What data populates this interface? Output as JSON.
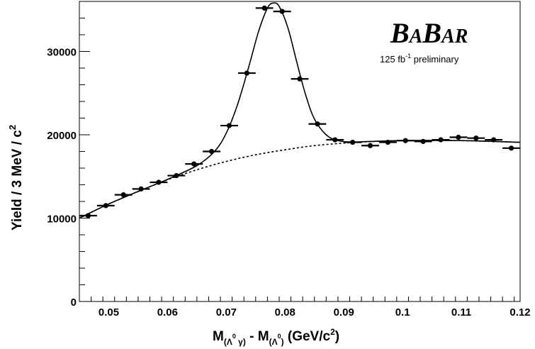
{
  "chart_data": {
    "type": "scatter",
    "x_tick_labels": [
      "0.05",
      "0.06",
      "0.07",
      "0.08",
      "0.09",
      "0.1",
      "0.11",
      "0.12"
    ],
    "y_tick_labels": [
      "0",
      "10000",
      "20000",
      "30000"
    ],
    "x_ticks": [
      0.05,
      0.06,
      0.07,
      0.08,
      0.09,
      0.1,
      0.11,
      0.12
    ],
    "y_ticks": [
      0,
      10000,
      20000,
      30000
    ],
    "xlim": [
      0.045,
      0.12
    ],
    "ylim": [
      0,
      36000
    ],
    "xlabel": {
      "main": "M",
      "sub1": "(Λ",
      "sup1": "0",
      "sub1b": " γ)",
      "mid": " - M",
      "sub2": "(Λ",
      "sup2": "0",
      "sub2b": ")",
      "tail": " (GeV/c",
      "sup3": "2",
      "end": ")"
    },
    "ylabel": {
      "main": "Yield / 3 MeV / c",
      "sup": "2"
    },
    "annotation": {
      "brand_b1": "B",
      "brand_a1": "A",
      "brand_b2": "B",
      "brand_ar": "AR",
      "lumi_pre": "125 fb",
      "lumi_sup": "-1",
      "lumi_post": " preliminary"
    },
    "points": [
      {
        "x": 0.0465,
        "y": 10300
      },
      {
        "x": 0.0495,
        "y": 11500
      },
      {
        "x": 0.0525,
        "y": 12800
      },
      {
        "x": 0.0555,
        "y": 13500
      },
      {
        "x": 0.0585,
        "y": 14300
      },
      {
        "x": 0.0615,
        "y": 15100
      },
      {
        "x": 0.0645,
        "y": 16500
      },
      {
        "x": 0.0675,
        "y": 18000
      },
      {
        "x": 0.0705,
        "y": 21100
      },
      {
        "x": 0.0735,
        "y": 27400
      },
      {
        "x": 0.0765,
        "y": 35200
      },
      {
        "x": 0.0795,
        "y": 34800
      },
      {
        "x": 0.0825,
        "y": 26700
      },
      {
        "x": 0.0855,
        "y": 21300
      },
      {
        "x": 0.0885,
        "y": 19400
      },
      {
        "x": 0.0915,
        "y": 19100
      },
      {
        "x": 0.0945,
        "y": 18700
      },
      {
        "x": 0.0975,
        "y": 19100
      },
      {
        "x": 0.1005,
        "y": 19300
      },
      {
        "x": 0.1035,
        "y": 19200
      },
      {
        "x": 0.1065,
        "y": 19400
      },
      {
        "x": 0.1095,
        "y": 19700
      },
      {
        "x": 0.1125,
        "y": 19600
      },
      {
        "x": 0.1155,
        "y": 19400
      },
      {
        "x": 0.1185,
        "y": 18400
      }
    ],
    "point_half_width": 0.0015,
    "fit_background": [
      {
        "x": 0.045,
        "y": 10000
      },
      {
        "x": 0.05,
        "y": 11700
      },
      {
        "x": 0.055,
        "y": 13200
      },
      {
        "x": 0.06,
        "y": 14600
      },
      {
        "x": 0.065,
        "y": 15800
      },
      {
        "x": 0.07,
        "y": 16800
      },
      {
        "x": 0.075,
        "y": 17600
      },
      {
        "x": 0.08,
        "y": 18200
      },
      {
        "x": 0.085,
        "y": 18700
      },
      {
        "x": 0.09,
        "y": 19000
      },
      {
        "x": 0.095,
        "y": 19200
      },
      {
        "x": 0.1,
        "y": 19300
      },
      {
        "x": 0.105,
        "y": 19300
      },
      {
        "x": 0.11,
        "y": 19300
      },
      {
        "x": 0.115,
        "y": 19200
      },
      {
        "x": 0.12,
        "y": 19100
      }
    ],
    "fit_total": [
      {
        "x": 0.045,
        "y": 10000
      },
      {
        "x": 0.05,
        "y": 11700
      },
      {
        "x": 0.055,
        "y": 13200
      },
      {
        "x": 0.06,
        "y": 14650
      },
      {
        "x": 0.065,
        "y": 16300
      },
      {
        "x": 0.068,
        "y": 18000
      },
      {
        "x": 0.07,
        "y": 20200
      },
      {
        "x": 0.072,
        "y": 23800
      },
      {
        "x": 0.074,
        "y": 28600
      },
      {
        "x": 0.0755,
        "y": 32400
      },
      {
        "x": 0.077,
        "y": 35200
      },
      {
        "x": 0.078,
        "y": 35800
      },
      {
        "x": 0.079,
        "y": 35400
      },
      {
        "x": 0.0805,
        "y": 32800
      },
      {
        "x": 0.082,
        "y": 28700
      },
      {
        "x": 0.0835,
        "y": 24800
      },
      {
        "x": 0.085,
        "y": 21900
      },
      {
        "x": 0.087,
        "y": 20000
      },
      {
        "x": 0.089,
        "y": 19300
      },
      {
        "x": 0.092,
        "y": 19150
      },
      {
        "x": 0.1,
        "y": 19300
      },
      {
        "x": 0.11,
        "y": 19300
      },
      {
        "x": 0.12,
        "y": 19100
      }
    ]
  }
}
